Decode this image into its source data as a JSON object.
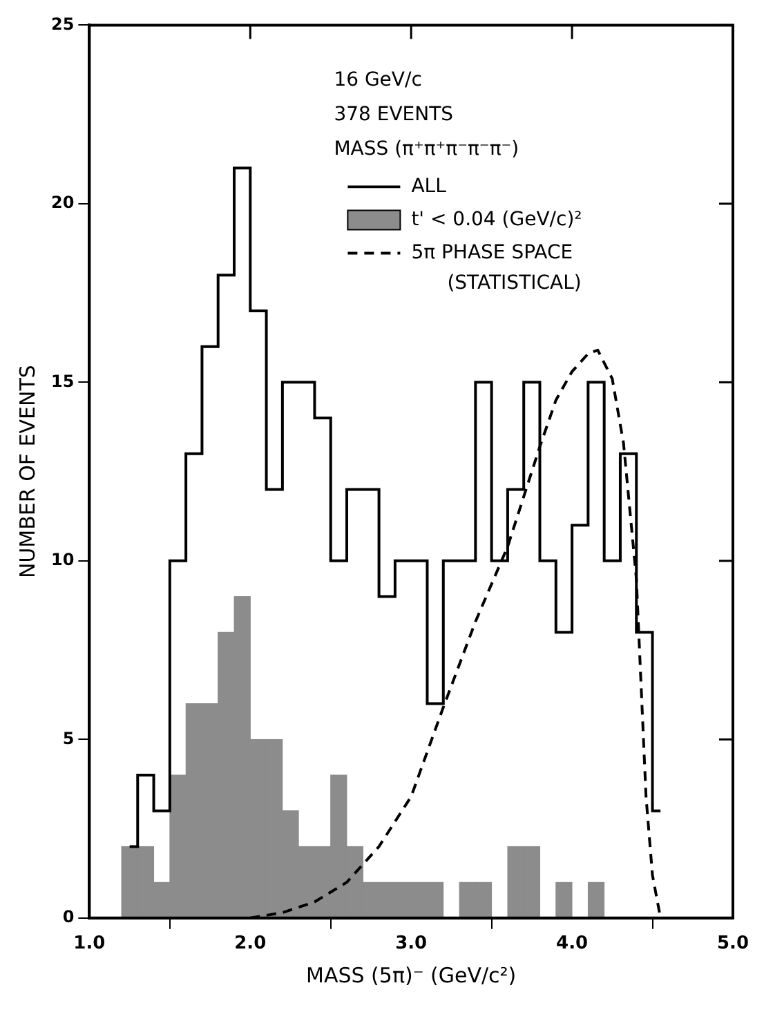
{
  "chart_data": {
    "type": "bar",
    "xlabel": "MASS (5π)⁻ (GeV/c²)",
    "ylabel": "NUMBER OF EVENTS",
    "x": [
      1.25,
      1.35,
      1.45,
      1.55,
      1.65,
      1.75,
      1.85,
      1.95,
      2.05,
      2.15,
      2.25,
      2.35,
      2.45,
      2.55,
      2.65,
      2.75,
      2.85,
      2.95,
      3.05,
      3.15,
      3.25,
      3.35,
      3.45,
      3.55,
      3.65,
      3.75,
      3.85,
      3.95,
      4.05,
      4.15,
      4.25,
      4.35,
      4.45,
      4.55
    ],
    "series": [
      {
        "name": "ALL",
        "type": "step",
        "color": "#000000",
        "values": [
          2,
          4,
          3,
          10,
          13,
          16,
          18,
          21,
          17,
          12,
          15,
          15,
          14,
          10,
          12,
          12,
          9,
          10,
          10,
          6,
          10,
          10,
          15,
          10,
          12,
          15,
          10,
          8,
          11,
          15,
          10,
          13,
          8,
          3
        ]
      },
      {
        "name": "t' < 0.04 (GeV/c)²",
        "color": "#8c8c8c",
        "values": [
          2,
          2,
          1,
          4,
          6,
          6,
          8,
          9,
          5,
          5,
          3,
          2,
          2,
          4,
          2,
          1,
          1,
          1,
          1,
          1,
          0,
          1,
          1,
          0,
          2,
          2,
          0,
          1,
          0,
          1,
          0,
          0,
          0,
          0
        ]
      },
      {
        "name": "5π PHASE SPACE (STATISTICAL)",
        "type": "line",
        "color": "#000000",
        "line_style": "dashed",
        "x": [
          2.0,
          2.2,
          2.4,
          2.6,
          2.8,
          3.0,
          3.2,
          3.4,
          3.6,
          3.8,
          3.9,
          4.0,
          4.1,
          4.16,
          4.25,
          4.32,
          4.4,
          4.46,
          4.5,
          4.55
        ],
        "values": [
          0,
          0.15,
          0.45,
          1,
          2,
          3.4,
          5.9,
          8.3,
          10.4,
          13.2,
          14.5,
          15.3,
          15.8,
          15.9,
          15.1,
          13.3,
          9.5,
          3.4,
          1.2,
          0
        ]
      }
    ],
    "xlim": [
      1.0,
      5.0
    ],
    "xticks": [
      {
        "value": 1,
        "label": "1.0"
      },
      {
        "value": 2,
        "label": "2.0"
      },
      {
        "value": 3,
        "label": "3.0"
      },
      {
        "value": 4,
        "label": "4.0"
      },
      {
        "value": 5,
        "label": "5.0"
      }
    ],
    "ylim": [
      0,
      25
    ],
    "yticks": [
      0,
      5,
      10,
      15,
      20,
      25
    ],
    "grid": false,
    "legend": "top",
    "annotations": [
      "16 GeV/c",
      "378 EVENTS",
      "MASS (π⁺π⁺π⁻π⁻π⁻)"
    ]
  }
}
